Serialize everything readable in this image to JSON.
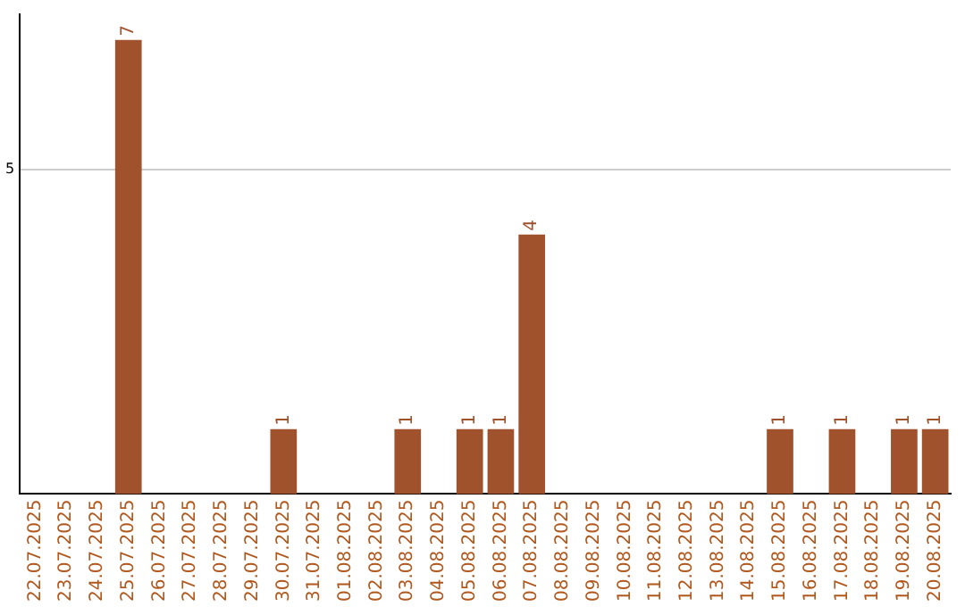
{
  "chart_data": {
    "type": "bar",
    "categories": [
      "22.07.2025",
      "23.07.2025",
      "24.07.2025",
      "25.07.2025",
      "26.07.2025",
      "27.07.2025",
      "28.07.2025",
      "29.07.2025",
      "30.07.2025",
      "31.07.2025",
      "01.08.2025",
      "02.08.2025",
      "03.08.2025",
      "04.08.2025",
      "05.08.2025",
      "06.08.2025",
      "07.08.2025",
      "08.08.2025",
      "09.08.2025",
      "10.08.2025",
      "11.08.2025",
      "12.08.2025",
      "13.08.2025",
      "14.08.2025",
      "15.08.2025",
      "16.08.2025",
      "17.08.2025",
      "18.08.2025",
      "19.08.2025",
      "20.08.2025"
    ],
    "values": [
      0,
      0,
      0,
      7,
      0,
      0,
      0,
      0,
      1,
      0,
      0,
      0,
      1,
      0,
      1,
      1,
      4,
      0,
      0,
      0,
      0,
      0,
      0,
      0,
      1,
      0,
      1,
      0,
      1,
      1
    ],
    "value_labels": [
      null,
      null,
      null,
      "7",
      null,
      null,
      null,
      null,
      "1",
      null,
      null,
      null,
      "1",
      null,
      "1",
      "1",
      "4",
      null,
      null,
      null,
      null,
      null,
      null,
      null,
      "1",
      null,
      "1",
      null,
      "1",
      "1"
    ],
    "color": "#a0522d",
    "ylim": [
      0,
      7.4
    ],
    "yticks": [
      5
    ],
    "grid": "y",
    "legend": false
  }
}
